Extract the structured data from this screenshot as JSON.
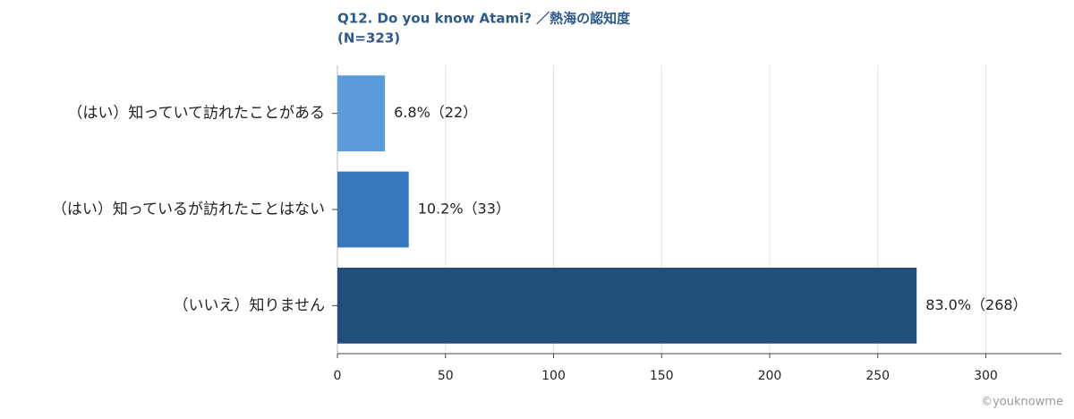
{
  "chart_data": {
    "type": "bar",
    "orientation": "horizontal",
    "title": "Q12. Do you know Atami? ／熱海の認知度",
    "subtitle": "(N=323)",
    "categories": [
      "（はい）知っていて訪れたことがある",
      "（はい）知っているが訪れたことはない",
      "（いいえ）知りません"
    ],
    "values": [
      22,
      33,
      268
    ],
    "value_labels": [
      "6.8%（22）",
      "10.2%（33）",
      "83.0%（268）"
    ],
    "colors": [
      "#5b9bd9",
      "#3677bd",
      "#224e7b"
    ],
    "xlim": [
      0,
      335
    ],
    "xticks": [
      0,
      50,
      100,
      150,
      200,
      250,
      300
    ],
    "grid": true,
    "source": "©youknowme"
  }
}
